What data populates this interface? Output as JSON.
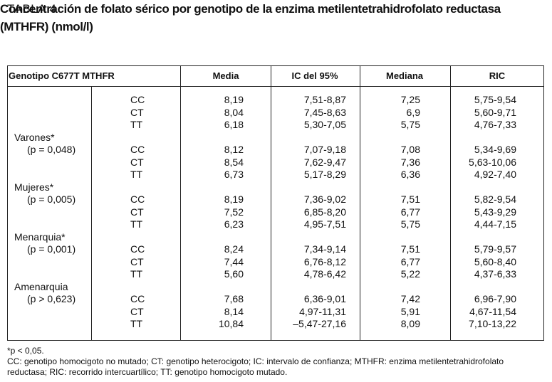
{
  "label": "TABLA 4",
  "title": "Concentración de folato sérico por genotipo de la enzima metilentetrahidrofolato reductasa (MTHFR) (nmol/l)",
  "table": {
    "header": [
      "Genotipo C677T MTHFR",
      "Media",
      "IC del 95%",
      "Mediana",
      "RIC"
    ],
    "groups": [
      {
        "rows": [
          [
            "CC",
            "8,19",
            "7,51-8,87",
            "7,25",
            "5,75-9,54"
          ],
          [
            "CT",
            "8,04",
            "7,45-8,63",
            "6,9",
            "5,60-9,71"
          ],
          [
            "TT",
            "6,18",
            "5,30-7,05",
            "5,75",
            "4,76-7,33"
          ]
        ]
      },
      {
        "label": "Varones*",
        "p": "(p = 0,048)",
        "rows": [
          [
            "CC",
            "8,12",
            "7,07-9,18",
            "7,08",
            "5,34-9,69"
          ],
          [
            "CT",
            "8,54",
            "7,62-9,47",
            "7,36",
            "5,63-10,06"
          ],
          [
            "TT",
            "6,73",
            "5,17-8,29",
            "6,36",
            "4,92-7,40"
          ]
        ]
      },
      {
        "label": "Mujeres*",
        "p": "(p = 0,005)",
        "rows": [
          [
            "CC",
            "8,19",
            "7,36-9,02",
            "7,51",
            "5,82-9,54"
          ],
          [
            "CT",
            "7,52",
            "6,85-8,20",
            "6,77",
            "5,43-9,29"
          ],
          [
            "TT",
            "6,23",
            "4,95-7,51",
            "5,75",
            "4,44-7,15"
          ]
        ]
      },
      {
        "label": "Menarquia*",
        "p": "(p = 0,001)",
        "rows": [
          [
            "CC",
            "8,24",
            "7,34-9,14",
            "7,51",
            "5,79-9,57"
          ],
          [
            "CT",
            "7,44",
            "6,76-8,12",
            "6,77",
            "5,60-8,40"
          ],
          [
            "TT",
            "5,60",
            "4,78-6,42",
            "5,22",
            "4,37-6,33"
          ]
        ]
      },
      {
        "label": "Amenarquia",
        "p": "(p > 0,623)",
        "rows": [
          [
            "CC",
            "7,68",
            "6,36-9,01",
            "7,42",
            "6,96-7,90"
          ],
          [
            "CT",
            "8,14",
            "4,97-11,31",
            "5,91",
            "4,67-11,54"
          ],
          [
            "TT",
            "10,84",
            "–5,47-27,16",
            "8,09",
            "7,10-13,22"
          ]
        ]
      }
    ]
  },
  "notes": [
    "*p < 0,05.",
    "CC: genotipo homocigoto no mutado; CT: genotipo heterocigoto; IC: intervalo de confianza; MTHFR: enzima metilentetrahidrofolato reductasa; RIC: recorrido intercuartílico; TT: genotipo homocigoto mutado."
  ]
}
